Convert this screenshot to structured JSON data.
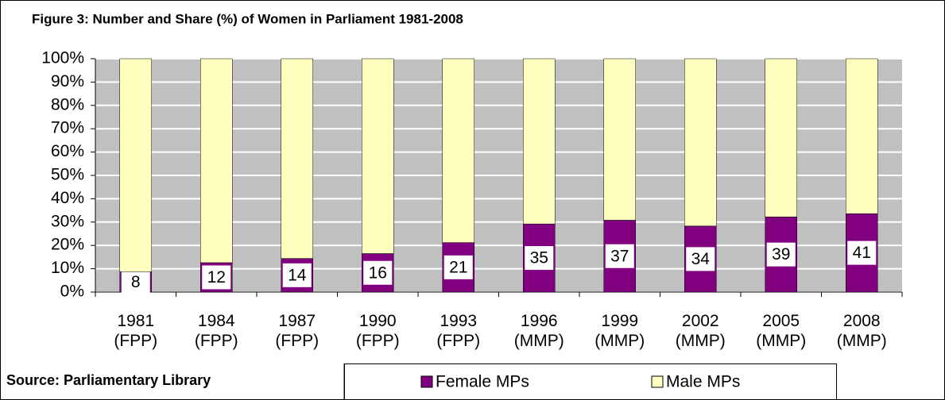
{
  "chart_data": {
    "type": "stacked_bar",
    "title": "Figure 3: Number and Share (%) of Women in Parliament 1981-2008",
    "source": "Source: Parliamentary Library",
    "categories": [
      "1981 (FPP)",
      "1984 (FPP)",
      "1987 (FPP)",
      "1990 (FPP)",
      "1993 (FPP)",
      "1996 (MMP)",
      "1999 (MMP)",
      "2002 (MMP)",
      "2005 (MMP)",
      "2008 (MMP)"
    ],
    "series": [
      {
        "name": "Female MPs",
        "color": "#800080",
        "values": [
          8.7,
          12.6,
          14.4,
          16.5,
          21.2,
          29.2,
          30.8,
          28.3,
          32.2,
          33.6
        ],
        "counts": [
          8,
          12,
          14,
          16,
          21,
          35,
          37,
          34,
          39,
          41
        ]
      },
      {
        "name": "Male MPs",
        "color": "#ffffc0",
        "values": [
          91.3,
          87.4,
          85.6,
          83.5,
          78.8,
          70.8,
          69.2,
          71.7,
          67.8,
          66.4
        ]
      }
    ],
    "ylim": [
      0,
      100
    ],
    "yticks": [
      {
        "value": 0,
        "label": "0%"
      },
      {
        "value": 10,
        "label": "10%"
      },
      {
        "value": 20,
        "label": "20%"
      },
      {
        "value": 30,
        "label": "30%"
      },
      {
        "value": 40,
        "label": "40%"
      },
      {
        "value": 50,
        "label": "50%"
      },
      {
        "value": 60,
        "label": "60%"
      },
      {
        "value": 70,
        "label": "70%"
      },
      {
        "value": 80,
        "label": "80%"
      },
      {
        "value": 90,
        "label": "90%"
      },
      {
        "value": 100,
        "label": "100%"
      }
    ],
    "grid": true
  }
}
